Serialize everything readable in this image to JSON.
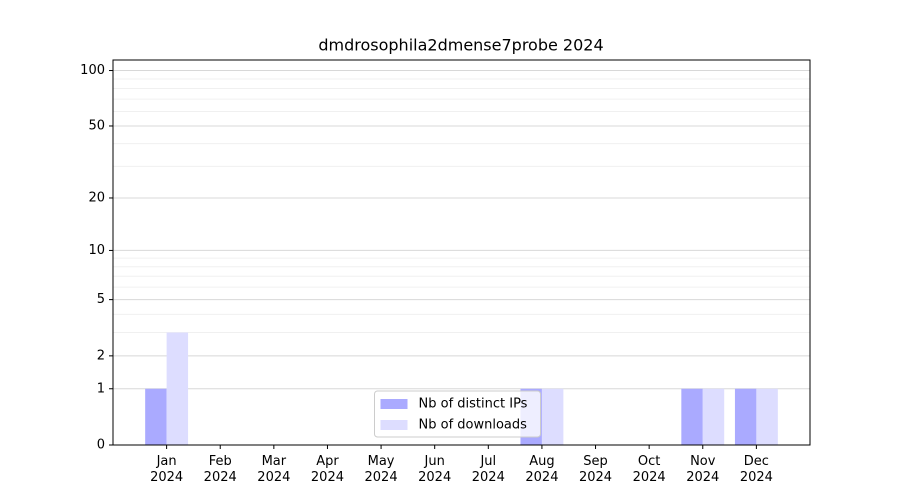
{
  "chart_data": {
    "type": "bar",
    "title": "dmdrosophila2dmense7probe 2024",
    "categories": [
      "Jan 2024",
      "Feb 2024",
      "Mar 2024",
      "Apr 2024",
      "May 2024",
      "Jun 2024",
      "Jul 2024",
      "Aug 2024",
      "Sep 2024",
      "Oct 2024",
      "Nov 2024",
      "Dec 2024"
    ],
    "series": [
      {
        "name": "Nb of distinct IPs",
        "color": "#aaaaff",
        "values": [
          1,
          0,
          0,
          0,
          0,
          0,
          0,
          1,
          0,
          0,
          1,
          1
        ]
      },
      {
        "name": "Nb of downloads",
        "color": "#ddddff",
        "values": [
          3,
          0,
          0,
          0,
          0,
          0,
          0,
          1,
          0,
          0,
          1,
          1
        ]
      }
    ],
    "y_scale": "log1p",
    "ylim": [
      0,
      114
    ],
    "yticks": [
      0,
      1,
      2,
      5,
      10,
      20,
      50,
      100
    ],
    "minor_yticks": [
      3,
      4,
      6,
      7,
      8,
      9,
      30,
      40,
      60,
      70,
      80,
      90
    ],
    "grid": true,
    "legend": "lower center"
  }
}
